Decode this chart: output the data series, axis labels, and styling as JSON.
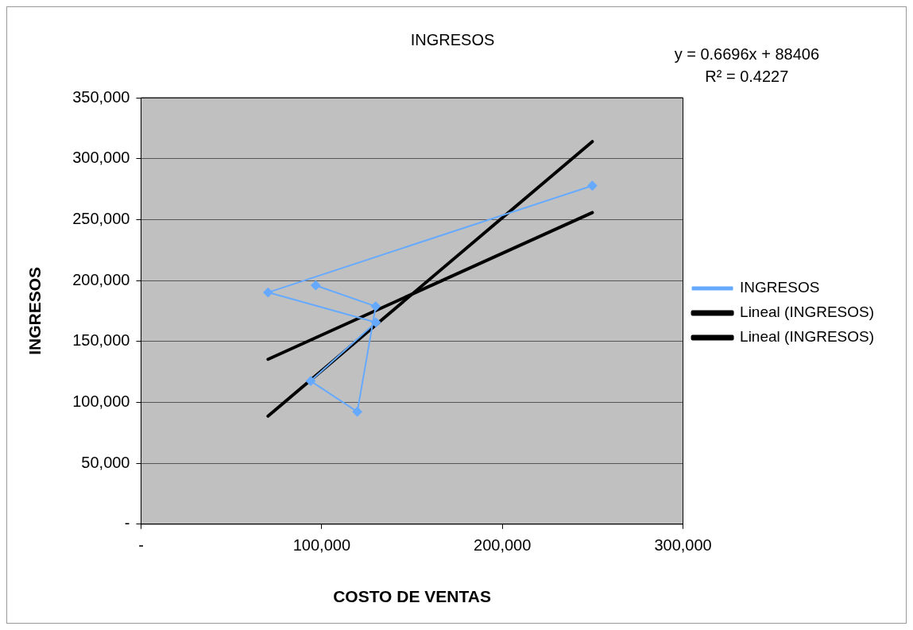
{
  "chart_data": {
    "type": "line",
    "title": "INGRESOS",
    "xlabel": "COSTO DE VENTAS",
    "ylabel": "INGRESOS",
    "xlim": [
      0,
      300000
    ],
    "xticks": [
      {
        "value": 0,
        "label": "-"
      },
      {
        "value": 100000,
        "label": "100,000"
      },
      {
        "value": 200000,
        "label": "200,000"
      },
      {
        "value": 300000,
        "label": "300,000"
      }
    ],
    "ylim": [
      0,
      350000
    ],
    "yticks": [
      {
        "value": 0,
        "label": "-"
      },
      {
        "value": 50000,
        "label": "50,000"
      },
      {
        "value": 100000,
        "label": "100,000"
      },
      {
        "value": 150000,
        "label": "150,000"
      },
      {
        "value": 200000,
        "label": "200,000"
      },
      {
        "value": 250000,
        "label": "250,000"
      },
      {
        "value": 300000,
        "label": "300,000"
      },
      {
        "value": 350000,
        "label": "350,000"
      }
    ],
    "series": [
      {
        "name": "INGRESOS",
        "color": "#66aaff",
        "marker": "diamond",
        "x": [
          96700,
          129900,
          119700,
          93900,
          130000,
          70300,
          249800
        ],
        "values": [
          196000,
          178800,
          92300,
          117500,
          165600,
          190200,
          277800
        ]
      },
      {
        "name": "Lineal (INGRESOS)",
        "color": "#000000",
        "marker": "none",
        "x": [
          70300,
          249800
        ],
        "values": [
          135300,
          255700
        ]
      },
      {
        "name": "Lineal (INGRESOS)",
        "color": "#000000",
        "marker": "none",
        "x": [
          70300,
          249800
        ],
        "values": [
          88700,
          314000
        ]
      }
    ],
    "annotations": [
      "y = 0.6696x + 88406",
      "R² = 0.4227"
    ],
    "grid": "y",
    "legend": "right"
  }
}
